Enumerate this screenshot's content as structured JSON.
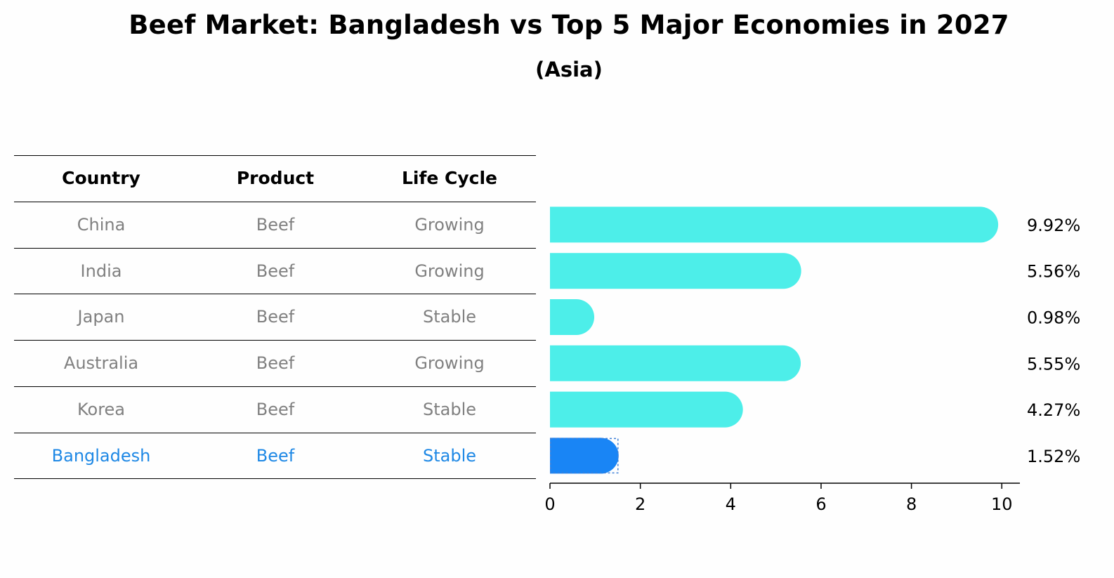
{
  "title": "Beef Market: Bangladesh vs Top 5 Major Economies in 2027",
  "subtitle": "(Asia)",
  "table": {
    "headers": [
      "Country",
      "Product",
      "Life Cycle"
    ],
    "rows": [
      [
        "China",
        "Beef",
        "Growing"
      ],
      [
        "India",
        "Beef",
        "Growing"
      ],
      [
        "Japan",
        "Beef",
        "Stable"
      ],
      [
        "Australia",
        "Beef",
        "Growing"
      ],
      [
        "Korea",
        "Beef",
        "Stable"
      ],
      [
        "Bangladesh",
        "Beef",
        "Stable"
      ]
    ]
  },
  "colors": {
    "bar": "#4deee9",
    "highlight": "#1985f5",
    "muted_text": "#808080",
    "highlight_text": "#1e88e5"
  },
  "chart_data": {
    "type": "bar",
    "orientation": "horizontal",
    "categories": [
      "China",
      "India",
      "Japan",
      "Australia",
      "Korea",
      "Bangladesh"
    ],
    "values": [
      9.92,
      5.56,
      0.98,
      5.55,
      4.27,
      1.52
    ],
    "value_labels": [
      "9.92%",
      "5.56%",
      "0.98%",
      "5.55%",
      "4.27%",
      "1.52%"
    ],
    "highlight": "Bangladesh",
    "xlim": [
      0,
      10.4
    ],
    "xticks": [
      0,
      2,
      4,
      6,
      8,
      10
    ],
    "grid": false,
    "legend": "none"
  }
}
